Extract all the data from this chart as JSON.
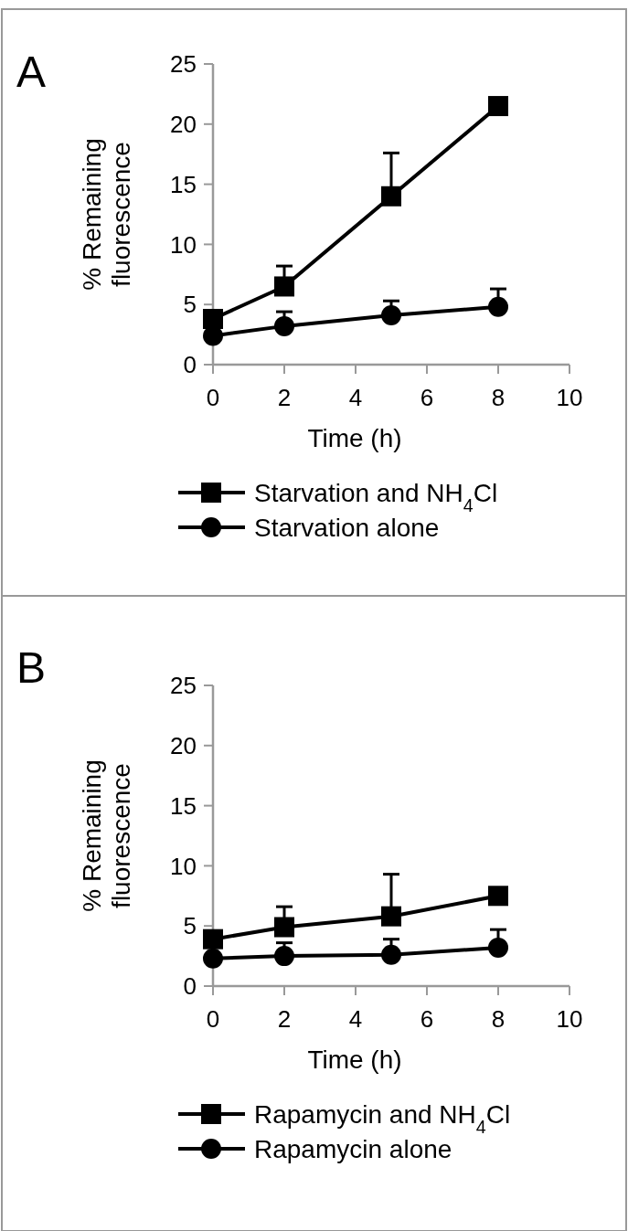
{
  "chart_data": [
    {
      "type": "line",
      "title": "A",
      "xlabel": "Time (h)",
      "ylabel": "% Remaining fluorescence",
      "x": [
        0,
        2,
        5,
        8
      ],
      "xlim": [
        0,
        10
      ],
      "ylim": [
        0,
        25
      ],
      "xticks": [
        0,
        2,
        4,
        6,
        8,
        10
      ],
      "yticks": [
        0,
        5,
        10,
        15,
        20,
        25
      ],
      "legend": "bottom",
      "series": [
        {
          "name": "Starvation and NH$_{4}$Cl",
          "color": "#000000",
          "marker": "square",
          "values": [
            3.8,
            6.5,
            14.0,
            21.5
          ],
          "errors": [
            null,
            [
              6.5,
              8.2
            ],
            [
              14.0,
              17.6
            ],
            null
          ]
        },
        {
          "name": "Starvation alone",
          "color": "#000000",
          "marker": "circle",
          "values": [
            2.4,
            3.2,
            4.1,
            4.8
          ],
          "errors": [
            null,
            [
              3.2,
              4.4
            ],
            [
              4.1,
              5.3
            ],
            [
              4.8,
              6.3
            ]
          ]
        }
      ]
    },
    {
      "type": "line",
      "title": "B",
      "xlabel": "Time (h)",
      "ylabel": "% Remaining fluorescence",
      "x": [
        0,
        2,
        5,
        8
      ],
      "xlim": [
        0,
        10
      ],
      "ylim": [
        0,
        25
      ],
      "xticks": [
        0,
        2,
        4,
        6,
        8,
        10
      ],
      "yticks": [
        0,
        5,
        10,
        15,
        20,
        25
      ],
      "legend": "bottom",
      "series": [
        {
          "name": "Rapamycin and NH$_{4}$Cl",
          "color": "#000000",
          "marker": "square",
          "values": [
            3.9,
            4.9,
            5.8,
            7.5
          ],
          "errors": [
            null,
            [
              4.9,
              6.6
            ],
            [
              5.8,
              9.3
            ],
            null
          ]
        },
        {
          "name": "Rapamycin alone",
          "color": "#000000",
          "marker": "circle",
          "values": [
            2.3,
            2.5,
            2.6,
            3.2
          ],
          "errors": [
            null,
            [
              2.5,
              3.6
            ],
            [
              2.6,
              3.9
            ],
            [
              3.2,
              4.7
            ]
          ]
        }
      ]
    }
  ]
}
